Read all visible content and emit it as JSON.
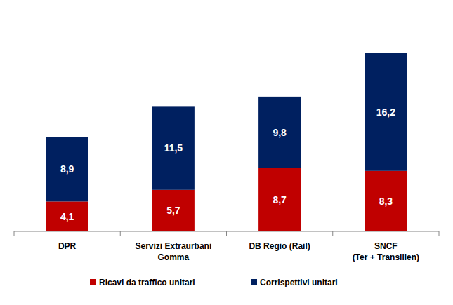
{
  "chart_data": {
    "type": "bar",
    "stacked": true,
    "data_labels": true,
    "grid": false,
    "legend": "bottom",
    "tick_labels": "x",
    "categories": [
      "DPR",
      "Servizi Extraurbani\nGomma",
      "DB Regio (Rail)",
      "SNCF\n(Ter + Transilien)"
    ],
    "ylim": [
      0,
      26
    ],
    "series": [
      {
        "name": "Ricavi da traffico unitari",
        "color": "#c00000",
        "values": [
          4.1,
          5.7,
          8.7,
          8.3
        ],
        "value_labels": [
          "4,1",
          "5,7",
          "8,7",
          "8,3"
        ]
      },
      {
        "name": "Corrispettivi unitari",
        "color": "#002060",
        "values": [
          8.9,
          11.5,
          9.8,
          16.2
        ],
        "value_labels": [
          "8,9",
          "11,5",
          "9,8",
          "16,2"
        ]
      }
    ]
  }
}
